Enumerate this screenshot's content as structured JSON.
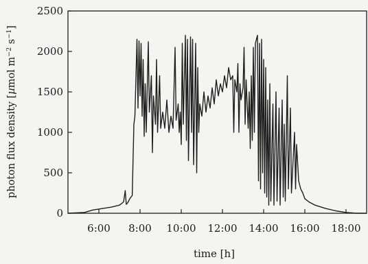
{
  "chart_data": {
    "type": "line",
    "title": "",
    "xlabel": "time [h]",
    "ylabel": "photon flux density [µmol m⁻² s⁻¹]",
    "ylabel_parts": {
      "prefix": "photon flux density [",
      "mu": "µ",
      "mol_m": "mol m",
      "exp1": "−2",
      "s": " s",
      "exp2": "−1",
      "suffix": "]"
    },
    "xlim": [
      4.5,
      19.0
    ],
    "ylim": [
      0,
      2500
    ],
    "x_ticks": [
      6,
      8,
      10,
      12,
      14,
      16,
      18
    ],
    "x_tick_labels": [
      "6:00",
      "8:00",
      "10:00",
      "12:00",
      "14:00",
      "16:00",
      "18:00"
    ],
    "y_ticks": [
      0,
      500,
      1000,
      1500,
      2000,
      2500
    ],
    "y_tick_labels": [
      "0",
      "500",
      "1000",
      "1500",
      "2000",
      "2500"
    ],
    "grid": false,
    "line_color": "#1e1e1e",
    "series": [
      {
        "points": [
          [
            4.5,
            0
          ],
          [
            5.3,
            10
          ],
          [
            5.7,
            40
          ],
          [
            6.2,
            60
          ],
          [
            6.6,
            75
          ],
          [
            7.0,
            100
          ],
          [
            7.2,
            140
          ],
          [
            7.28,
            280
          ],
          [
            7.33,
            110
          ],
          [
            7.4,
            130
          ],
          [
            7.5,
            180
          ],
          [
            7.62,
            220
          ],
          [
            7.7,
            1100
          ],
          [
            7.75,
            1200
          ],
          [
            7.85,
            2150
          ],
          [
            7.9,
            1300
          ],
          [
            7.95,
            2130
          ],
          [
            8.0,
            1450
          ],
          [
            8.05,
            2100
          ],
          [
            8.1,
            1200
          ],
          [
            8.15,
            1900
          ],
          [
            8.2,
            950
          ],
          [
            8.25,
            1600
          ],
          [
            8.3,
            1000
          ],
          [
            8.4,
            2120
          ],
          [
            8.45,
            1250
          ],
          [
            8.55,
            1700
          ],
          [
            8.6,
            750
          ],
          [
            8.65,
            1450
          ],
          [
            8.75,
            1100
          ],
          [
            8.8,
            1900
          ],
          [
            8.85,
            1000
          ],
          [
            8.95,
            1700
          ],
          [
            9.0,
            1050
          ],
          [
            9.1,
            1250
          ],
          [
            9.2,
            1050
          ],
          [
            9.3,
            1400
          ],
          [
            9.4,
            1000
          ],
          [
            9.5,
            1200
          ],
          [
            9.6,
            1050
          ],
          [
            9.7,
            2050
          ],
          [
            9.75,
            1150
          ],
          [
            9.85,
            1350
          ],
          [
            9.9,
            1000
          ],
          [
            9.95,
            1250
          ],
          [
            10.0,
            850
          ],
          [
            10.05,
            2100
          ],
          [
            10.1,
            1100
          ],
          [
            10.2,
            2200
          ],
          [
            10.25,
            900
          ],
          [
            10.3,
            2150
          ],
          [
            10.35,
            650
          ],
          [
            10.45,
            2180
          ],
          [
            10.5,
            1000
          ],
          [
            10.55,
            2150
          ],
          [
            10.6,
            600
          ],
          [
            10.7,
            2100
          ],
          [
            10.75,
            500
          ],
          [
            10.8,
            1800
          ],
          [
            10.85,
            1000
          ],
          [
            10.9,
            1350
          ],
          [
            11.0,
            1200
          ],
          [
            11.1,
            1500
          ],
          [
            11.2,
            1250
          ],
          [
            11.3,
            1450
          ],
          [
            11.4,
            1300
          ],
          [
            11.5,
            1550
          ],
          [
            11.6,
            1350
          ],
          [
            11.7,
            1650
          ],
          [
            11.8,
            1450
          ],
          [
            11.9,
            1600
          ],
          [
            12.0,
            1500
          ],
          [
            12.1,
            1700
          ],
          [
            12.2,
            1550
          ],
          [
            12.3,
            1800
          ],
          [
            12.4,
            1650
          ],
          [
            12.5,
            1700
          ],
          [
            12.55,
            1000
          ],
          [
            12.6,
            1650
          ],
          [
            12.7,
            1500
          ],
          [
            12.75,
            1850
          ],
          [
            12.8,
            1000
          ],
          [
            12.85,
            1600
          ],
          [
            12.9,
            1400
          ],
          [
            13.0,
            1550
          ],
          [
            13.05,
            2050
          ],
          [
            13.1,
            1100
          ],
          [
            13.15,
            1650
          ],
          [
            13.25,
            1050
          ],
          [
            13.3,
            1500
          ],
          [
            13.35,
            800
          ],
          [
            13.4,
            1700
          ],
          [
            13.45,
            900
          ],
          [
            13.5,
            2050
          ],
          [
            13.55,
            1000
          ],
          [
            13.6,
            2100
          ],
          [
            13.7,
            2200
          ],
          [
            13.75,
            400
          ],
          [
            13.8,
            2100
          ],
          [
            13.85,
            300
          ],
          [
            13.9,
            2150
          ],
          [
            13.95,
            500
          ],
          [
            14.0,
            1900
          ],
          [
            14.05,
            250
          ],
          [
            14.1,
            1800
          ],
          [
            14.15,
            200
          ],
          [
            14.2,
            1400
          ],
          [
            14.25,
            100
          ],
          [
            14.3,
            1600
          ],
          [
            14.35,
            150
          ],
          [
            14.45,
            1350
          ],
          [
            14.5,
            100
          ],
          [
            14.6,
            1500
          ],
          [
            14.65,
            150
          ],
          [
            14.75,
            1300
          ],
          [
            14.8,
            100
          ],
          [
            14.9,
            1400
          ],
          [
            14.95,
            200
          ],
          [
            15.0,
            1100
          ],
          [
            15.05,
            150
          ],
          [
            15.15,
            1700
          ],
          [
            15.2,
            300
          ],
          [
            15.3,
            1300
          ],
          [
            15.35,
            250
          ],
          [
            15.5,
            1000
          ],
          [
            15.55,
            300
          ],
          [
            15.6,
            850
          ],
          [
            15.7,
            400
          ],
          [
            15.8,
            300
          ],
          [
            15.9,
            250
          ],
          [
            16.0,
            180
          ],
          [
            16.2,
            140
          ],
          [
            16.5,
            100
          ],
          [
            17.0,
            60
          ],
          [
            17.5,
            30
          ],
          [
            18.0,
            10
          ],
          [
            18.5,
            0
          ],
          [
            19.0,
            0
          ]
        ]
      }
    ]
  }
}
